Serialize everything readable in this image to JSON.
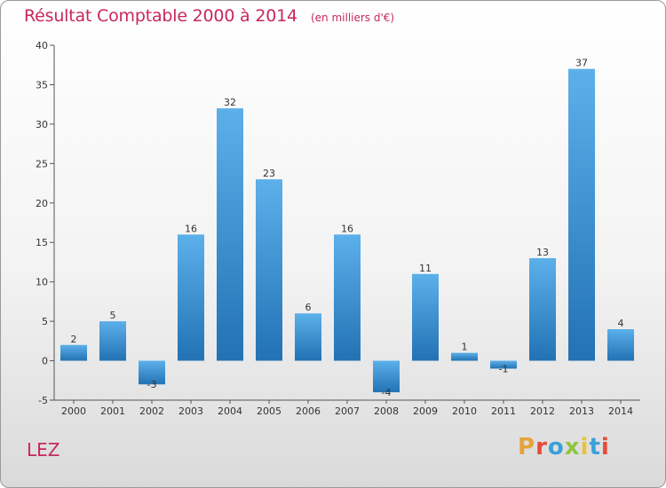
{
  "header": {
    "title": "Résultat Comptable 2000 à 2014",
    "unit": "(en milliers d'€)"
  },
  "footer": {
    "commune": "LEZ",
    "logo_text": "Proxiti"
  },
  "colors": {
    "title": "#c8285a",
    "bar_light": "#5cb0ea",
    "bar_dark": "#2272b4",
    "logo_letters": [
      "#e8a23a",
      "#e84a3a",
      "#3aa0d8",
      "#8ec63f",
      "#e8c23a",
      "#3aa0d8",
      "#e84a3a"
    ]
  },
  "chart_data": {
    "type": "bar",
    "categories": [
      "2000",
      "2001",
      "2002",
      "2003",
      "2004",
      "2005",
      "2006",
      "2007",
      "2008",
      "2009",
      "2010",
      "2011",
      "2012",
      "2013",
      "2014"
    ],
    "values": [
      2,
      5,
      -3,
      16,
      32,
      23,
      6,
      16,
      -4,
      11,
      1,
      -1,
      13,
      37,
      4
    ],
    "title": "Résultat Comptable 2000 à 2014",
    "unit": "(en milliers d'€)",
    "xlabel": "",
    "ylabel": "",
    "ylim": [
      -5,
      40
    ],
    "yticks": [
      -5,
      0,
      5,
      10,
      15,
      20,
      25,
      30,
      35,
      40
    ],
    "grid": false
  }
}
